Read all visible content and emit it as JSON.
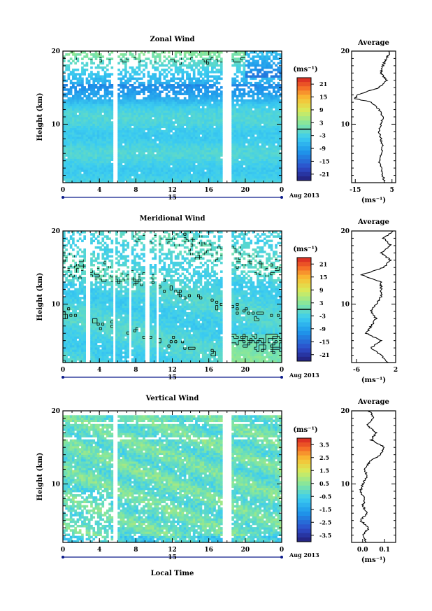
{
  "chart_data": [
    {
      "type": "heatmap",
      "title": "Zonal Wind",
      "xlabel": "",
      "ylabel": "Height (km)",
      "xlim": [
        0,
        24
      ],
      "ylim": [
        2,
        20
      ],
      "x_ticks": [
        "0",
        "4",
        "8",
        "12",
        "16",
        "20",
        "0"
      ],
      "y_ticks": [
        "10",
        "20"
      ],
      "date_marker": "15",
      "date_label": "Aug 2013",
      "colorbar": {
        "unit": "(ms⁻¹)",
        "ticks": [
          "21",
          "15",
          "9",
          "3",
          "-3",
          "-9",
          "-15",
          "-21"
        ],
        "range": [
          -24,
          24
        ],
        "contour_level": 0
      },
      "data_gaps_hours": [
        [
          5.5,
          6.0
        ],
        [
          17.4,
          18.4
        ]
      ],
      "profile": {
        "title": "Average",
        "xlabel": "(ms⁻¹)",
        "x_ticks": [
          "-15",
          "5"
        ],
        "xlim": [
          -17,
          7
        ],
        "y_ticks": [
          "10",
          "20"
        ],
        "height_km": [
          2,
          3,
          4,
          5,
          6,
          7,
          8,
          9,
          10,
          11,
          12,
          13,
          13.5,
          14,
          15,
          16,
          17,
          18,
          19,
          20
        ],
        "value": [
          1,
          0,
          -1,
          -2,
          -1,
          0,
          -1,
          -2,
          -1,
          0,
          -2,
          -6,
          -15,
          -14,
          -2,
          2,
          -1,
          0,
          2,
          4
        ]
      }
    },
    {
      "type": "heatmap",
      "title": "Meridional Wind",
      "xlabel": "",
      "ylabel": "Height (km)",
      "xlim": [
        0,
        24
      ],
      "ylim": [
        2,
        20
      ],
      "x_ticks": [
        "0",
        "4",
        "8",
        "12",
        "16",
        "20",
        "0"
      ],
      "y_ticks": [
        "10",
        "20"
      ],
      "date_marker": "15",
      "date_label": "Aug 2013",
      "colorbar": {
        "unit": "(ms⁻¹)",
        "ticks": [
          "21",
          "15",
          "9",
          "3",
          "-3",
          "-9",
          "-15",
          "-21"
        ],
        "range": [
          -24,
          24
        ],
        "contour_level": 0
      },
      "data_gaps_hours": [
        [
          2.5,
          2.9
        ],
        [
          5.5,
          5.8
        ],
        [
          7.2,
          7.6
        ],
        [
          9.0,
          9.4
        ],
        [
          10.2,
          10.5
        ],
        [
          17.4,
          18.4
        ]
      ],
      "profile": {
        "title": "Average",
        "xlabel": "(ms⁻¹)",
        "x_ticks": [
          "-6",
          "2"
        ],
        "xlim": [
          -7,
          2
        ],
        "y_ticks": [
          "10",
          "20"
        ],
        "height_km": [
          2,
          3,
          4,
          5,
          6,
          7,
          8,
          9,
          10,
          11,
          12,
          13,
          14,
          15,
          16,
          17,
          18,
          19,
          20
        ],
        "value": [
          0.5,
          -1,
          -3,
          -1,
          -4,
          -3,
          -2,
          -3,
          -2,
          -1,
          -1,
          -1,
          -5,
          -0.5,
          1,
          -1,
          1,
          -0.5,
          1.5
        ]
      }
    },
    {
      "type": "heatmap",
      "title": "Vertical Wind",
      "xlabel": "Local Time",
      "ylabel": "Height (km)",
      "xlim": [
        0,
        24
      ],
      "ylim": [
        2,
        20
      ],
      "x_ticks": [
        "0",
        "4",
        "8",
        "12",
        "16",
        "20",
        "0"
      ],
      "y_ticks": [
        "10",
        "20"
      ],
      "date_marker": "15",
      "date_label": "Aug 2013",
      "colorbar": {
        "unit": "(ms⁻¹)",
        "ticks": [
          "3.5",
          "2.5",
          "1.5",
          "0.5",
          "-0.5",
          "-1.5",
          "-2.5",
          "-3.5"
        ],
        "range": [
          -4,
          4
        ],
        "contour_level": null
      },
      "data_gaps_hours": [
        [
          5.5,
          6.0
        ],
        [
          17.4,
          18.4
        ]
      ],
      "profile": {
        "title": "Average",
        "xlabel": "(ms⁻¹)",
        "x_ticks": [
          "0.0",
          "0.1"
        ],
        "x_minor_ticks": [
          "0.1"
        ],
        "xlim": [
          -0.05,
          0.15
        ],
        "y_ticks": [
          "10",
          "20"
        ],
        "height_km": [
          2,
          3,
          4,
          5,
          6,
          7,
          8,
          9,
          10,
          11,
          12,
          13,
          14,
          15,
          16,
          17,
          18,
          19,
          20
        ],
        "value": [
          0.02,
          0.0,
          0.03,
          -0.01,
          0.02,
          0.0,
          0.01,
          -0.01,
          0.0,
          0.02,
          0.01,
          0.03,
          0.08,
          0.1,
          0.04,
          0.06,
          0.02,
          0.05,
          0.03
        ]
      }
    }
  ]
}
